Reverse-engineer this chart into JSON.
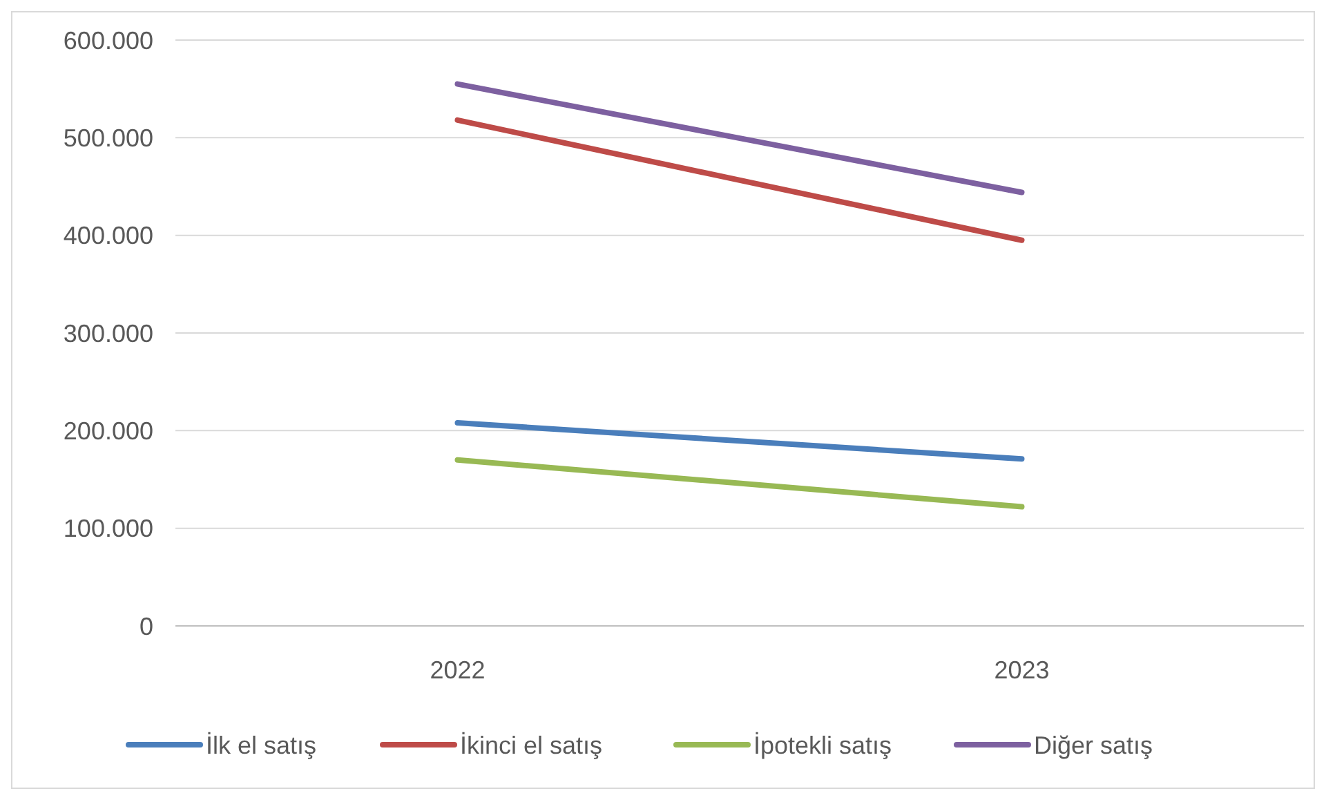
{
  "chart_data": {
    "type": "line",
    "categories": [
      "2022",
      "2023"
    ],
    "series": [
      {
        "name": "İlk el satış",
        "color": "#4a7ebb",
        "values": [
          208000,
          171000
        ]
      },
      {
        "name": "İkinci el satış",
        "color": "#be4b48",
        "values": [
          518000,
          395000
        ]
      },
      {
        "name": "İpotekli satış",
        "color": "#98b954",
        "values": [
          170000,
          122000
        ]
      },
      {
        "name": "Diğer satış",
        "color": "#7d60a0",
        "values": [
          555000,
          444000
        ]
      }
    ],
    "ylim": [
      0,
      600000
    ],
    "yticks": [
      {
        "value": 0,
        "label": "0"
      },
      {
        "value": 100000,
        "label": "100.000"
      },
      {
        "value": 200000,
        "label": "200.000"
      },
      {
        "value": 300000,
        "label": "300.000"
      },
      {
        "value": 400000,
        "label": "400.000"
      },
      {
        "value": 500000,
        "label": "500.000"
      },
      {
        "value": 600000,
        "label": "600.000"
      }
    ],
    "grid": "y",
    "legend": "bottom",
    "marker": "none",
    "line_style": "solid"
  }
}
